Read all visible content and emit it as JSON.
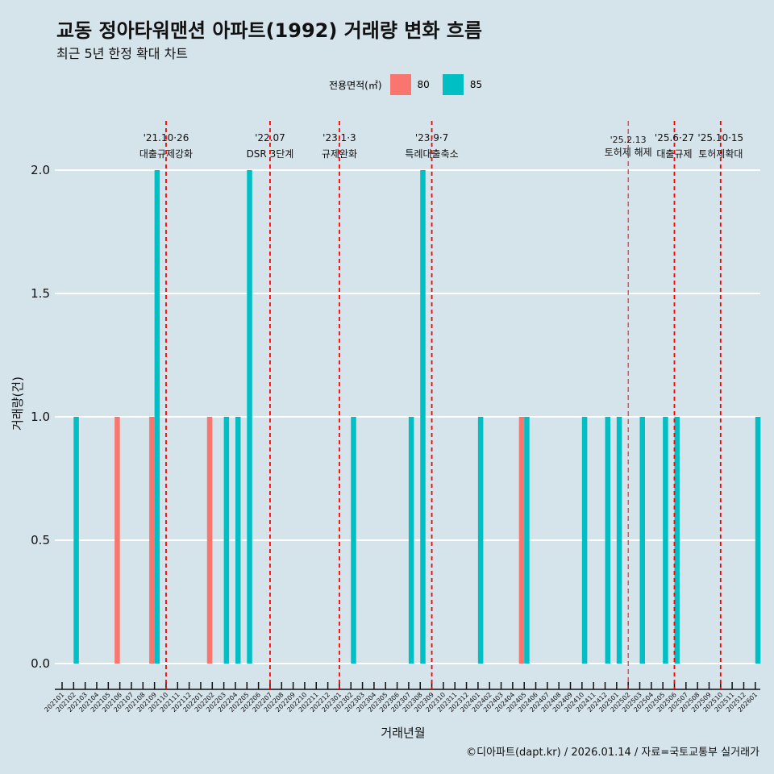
{
  "title": "교동 정아타워맨션 아파트(1992) 거래량 변화 흐름",
  "subtitle": "최근 5년 한정 확대 차트",
  "caption": "©디아파트(dapt.kr) / 2026.01.14 / 자료=국토교통부 실거래가",
  "colors": {
    "80": "#f8766d",
    "85": "#00bfc4",
    "vline": "#ff0000",
    "grid": "#ffffff"
  },
  "chart_data": {
    "type": "bar",
    "xlabel": "거래년월",
    "ylabel": "거래량(건)",
    "ylim": [
      0,
      2.2
    ],
    "yticks": [
      "0.0",
      "0.5",
      "1.0",
      "1.5",
      "2.0"
    ],
    "legend": {
      "title": "전용면적(㎡)",
      "entries": [
        "80",
        "85"
      ],
      "placement": "top"
    },
    "categories": [
      "202101",
      "202102",
      "202103",
      "202104",
      "202105",
      "202106",
      "202107",
      "202108",
      "202109",
      "202110",
      "202111",
      "202112",
      "202201",
      "202202",
      "202203",
      "202204",
      "202205",
      "202206",
      "202207",
      "202208",
      "202209",
      "202210",
      "202211",
      "202212",
      "202301",
      "202302",
      "202303",
      "202304",
      "202305",
      "202306",
      "202307",
      "202308",
      "202309",
      "202310",
      "202311",
      "202312",
      "202401",
      "202402",
      "202403",
      "202404",
      "202405",
      "202406",
      "202407",
      "202408",
      "202409",
      "202410",
      "202411",
      "202412",
      "202501",
      "202502",
      "202503",
      "202504",
      "202505",
      "202506",
      "202507",
      "202508",
      "202509",
      "202510",
      "202511",
      "202512",
      "202601"
    ],
    "series": [
      {
        "name": "80",
        "points": [
          [
            "202106",
            1
          ],
          [
            "202109",
            1
          ],
          [
            "202202",
            1
          ],
          [
            "202405",
            1
          ]
        ]
      },
      {
        "name": "85",
        "points": [
          [
            "202102",
            1
          ],
          [
            "202109",
            2
          ],
          [
            "202203",
            1
          ],
          [
            "202204",
            1
          ],
          [
            "202205",
            2
          ],
          [
            "202302",
            1
          ],
          [
            "202307",
            1
          ],
          [
            "202308",
            2
          ],
          [
            "202401",
            1
          ],
          [
            "202405",
            1
          ],
          [
            "202410",
            1
          ],
          [
            "202412",
            1
          ],
          [
            "202501",
            1
          ],
          [
            "202503",
            1
          ],
          [
            "202505",
            1
          ],
          [
            "202506",
            1
          ],
          [
            "202601",
            1
          ]
        ]
      }
    ],
    "annotations": [
      {
        "month": "202110",
        "date": "'21.10·26",
        "label": "대출규제강화",
        "style": "dashed"
      },
      {
        "month": "202207",
        "date": "'22.07",
        "label": "DSR 3단계",
        "style": "dashed"
      },
      {
        "month": "202301",
        "date": "'23.1·3",
        "label": "규제완화",
        "style": "dashed"
      },
      {
        "month": "202309",
        "date": "'23.9·7",
        "label": "특례대출축소",
        "style": "dashed"
      },
      {
        "month": "202502",
        "date": "'25.2.13",
        "label": "토허제 해제",
        "style": "thin"
      },
      {
        "month": "202506",
        "date": "'25.6·27",
        "label": "대출규제",
        "style": "dashed"
      },
      {
        "month": "202510",
        "date": "'25.10·15",
        "label": "토허제확대",
        "style": "dashed"
      }
    ]
  }
}
